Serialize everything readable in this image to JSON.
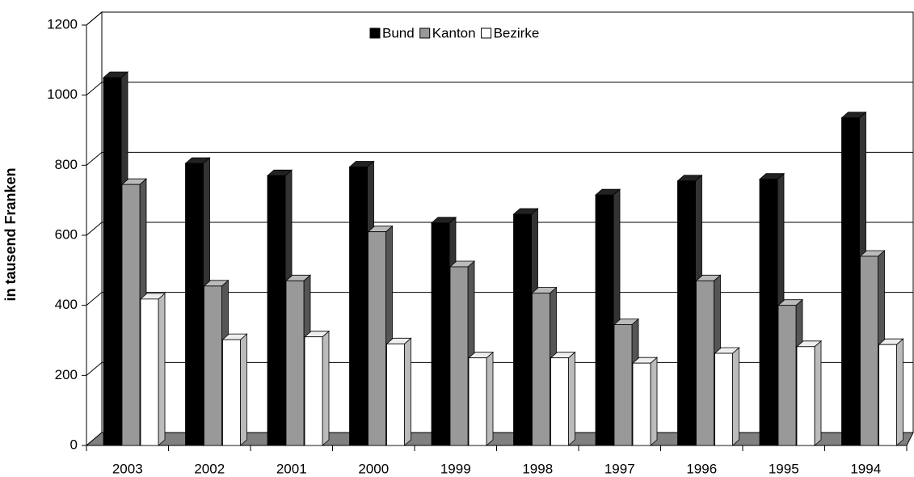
{
  "chart_data": {
    "type": "bar3d",
    "y_label": "in tausend Franken",
    "categories": [
      "2003",
      "2002",
      "2001",
      "2000",
      "1999",
      "1998",
      "1997",
      "1996",
      "1995",
      "1994"
    ],
    "series": [
      {
        "name": "Bund",
        "color": "#000000",
        "values": [
          1050,
          805,
          770,
          795,
          635,
          660,
          715,
          755,
          760,
          935
        ]
      },
      {
        "name": "Kanton",
        "color": "#999999",
        "values": [
          745,
          455,
          470,
          610,
          510,
          435,
          345,
          470,
          400,
          540
        ]
      },
      {
        "name": "Bezirke",
        "color": "#ffffff",
        "values": [
          418,
          302,
          310,
          290,
          250,
          250,
          235,
          263,
          282,
          288
        ]
      }
    ],
    "ylim": [
      0,
      1200
    ],
    "yticks": [
      0,
      200,
      400,
      600,
      800,
      1000,
      1200
    ],
    "grid": true,
    "legend": "top"
  }
}
